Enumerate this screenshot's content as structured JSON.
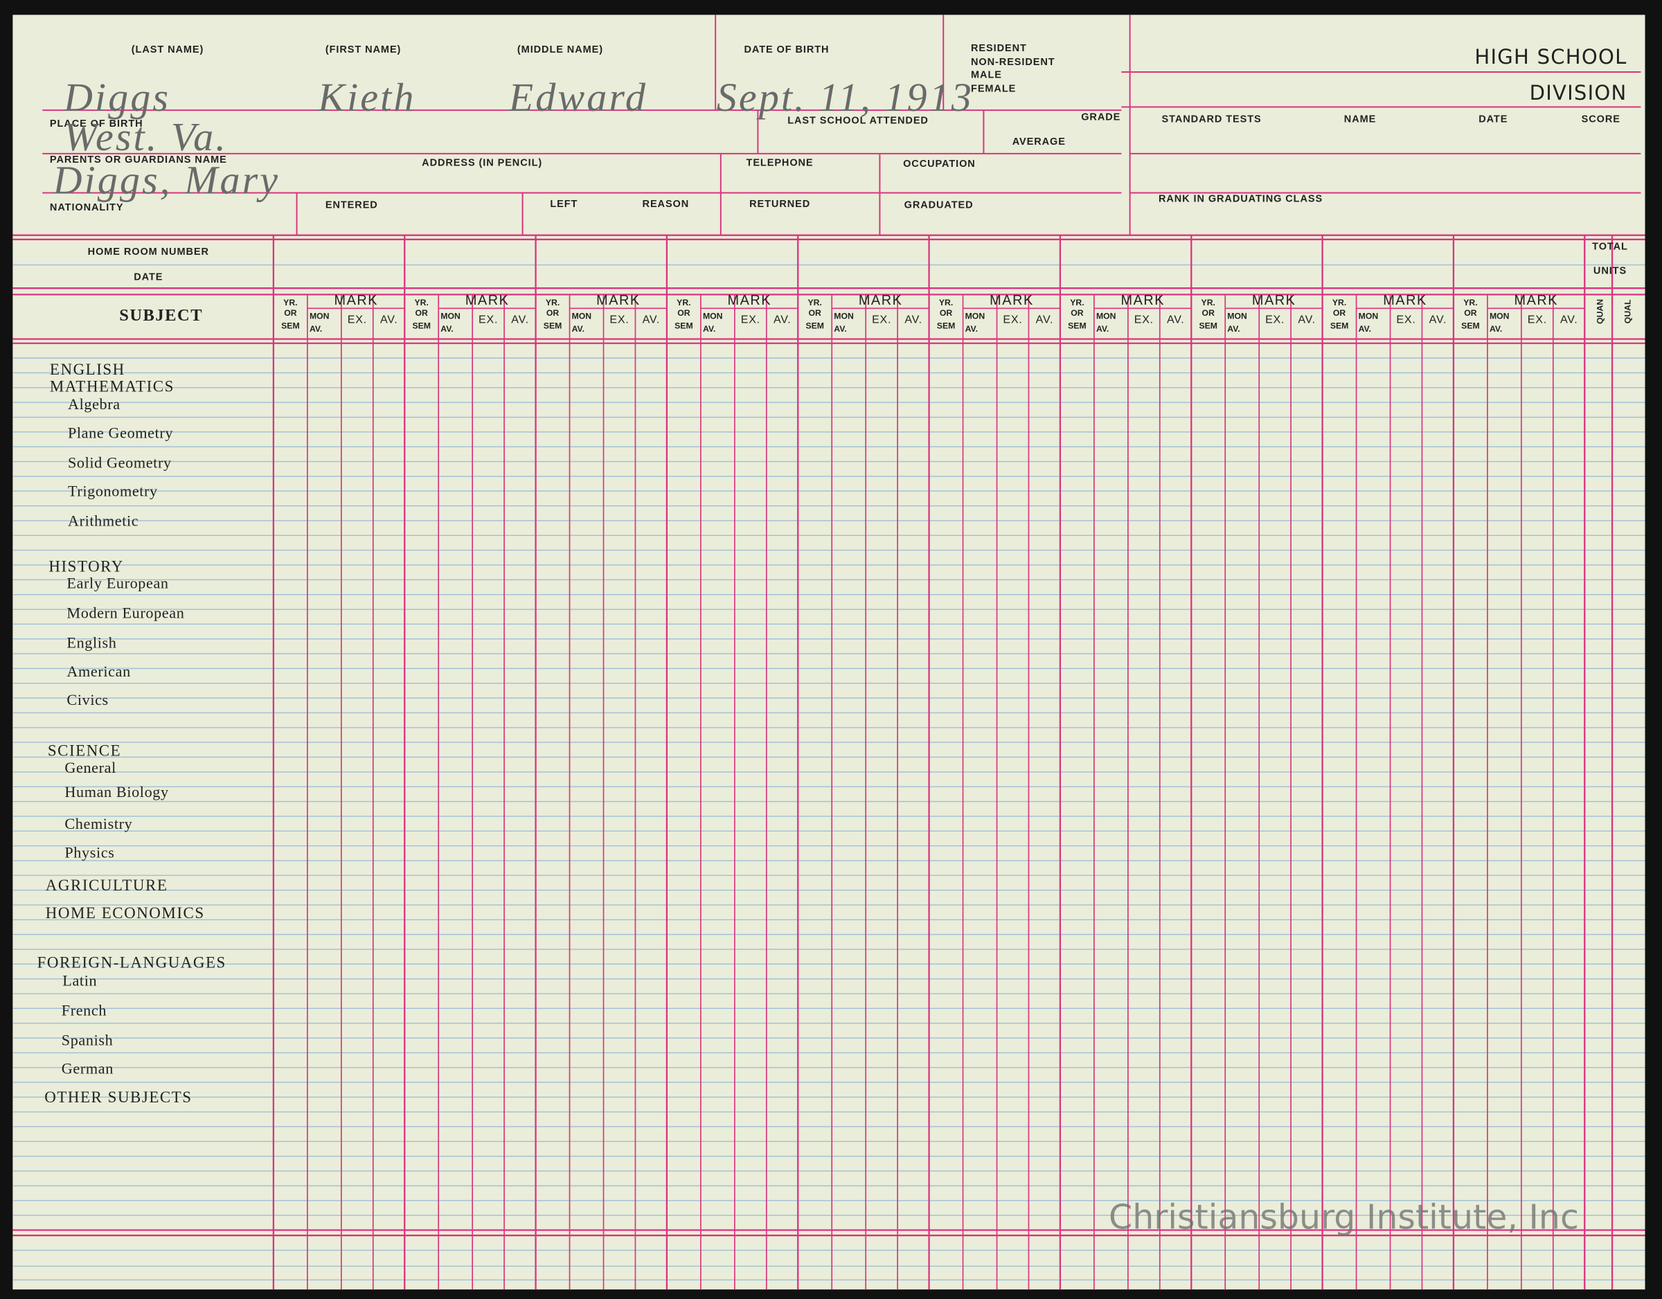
{
  "header": {
    "title_line1": "HIGH SCHOOL",
    "title_line2": "DIVISION"
  },
  "fields": {
    "last_name": "(LAST NAME)",
    "first_name": "(FIRST NAME)",
    "middle_name": "(MIDDLE NAME)",
    "date_of_birth": "DATE OF BIRTH",
    "resident": "RESIDENT",
    "non_resident": "NON-RESIDENT",
    "male": "MALE",
    "female": "FEMALE",
    "place_of_birth": "PLACE OF BIRTH",
    "last_school": "LAST SCHOOL ATTENDED",
    "grade": "GRADE",
    "average": "AVERAGE",
    "standard_tests": "STANDARD TESTS",
    "test_name": "NAME",
    "test_date": "DATE",
    "test_score": "SCORE",
    "parents": "PARENTS OR GUARDIANS NAME",
    "address": "ADDRESS (IN PENCIL)",
    "telephone": "TELEPHONE",
    "occupation": "OCCUPATION",
    "nationality": "NATIONALITY",
    "entered": "ENTERED",
    "left": "LEFT",
    "reason": "REASON",
    "returned": "RETURNED",
    "graduated": "GRADUATED",
    "rank": "RANK IN GRADUATING CLASS"
  },
  "entries": {
    "last_name": "Diggs",
    "first_name": "Kieth",
    "middle_name": "Edward",
    "date_of_birth": "Sept. 11, 1913",
    "place_of_birth": "West. Va.",
    "parent": "Diggs, Mary"
  },
  "grid": {
    "home_room": "HOME ROOM NUMBER",
    "date": "DATE",
    "subject": "SUBJECT",
    "total": "TOTAL",
    "units": "UNITS",
    "quan": "QUAN",
    "qual": "QUAL",
    "term_header": {
      "yr": [
        "YR.",
        "OR",
        "SEM"
      ],
      "mark": "MARK",
      "mon_av": [
        "MON",
        "AV."
      ],
      "ex": "EX.",
      "av": "AV."
    }
  },
  "subjects": [
    "ENGLISH",
    "MATHEMATICS",
    "Algebra",
    "Plane Geometry",
    "Solid Geometry",
    "Trigonometry",
    "Arithmetic",
    "HISTORY",
    "Early European",
    "Modern European",
    "English",
    "American",
    "Civics",
    "SCIENCE",
    "General",
    "Human Biology",
    "Chemistry",
    "Physics",
    "AGRICULTURE",
    "HOME ECONOMICS",
    "FOREIGN-LANGUAGES",
    "Latin",
    "French",
    "Spanish",
    "German",
    "OTHER SUBJECTS"
  ],
  "watermark": "Christiansburg Institute, Inc"
}
